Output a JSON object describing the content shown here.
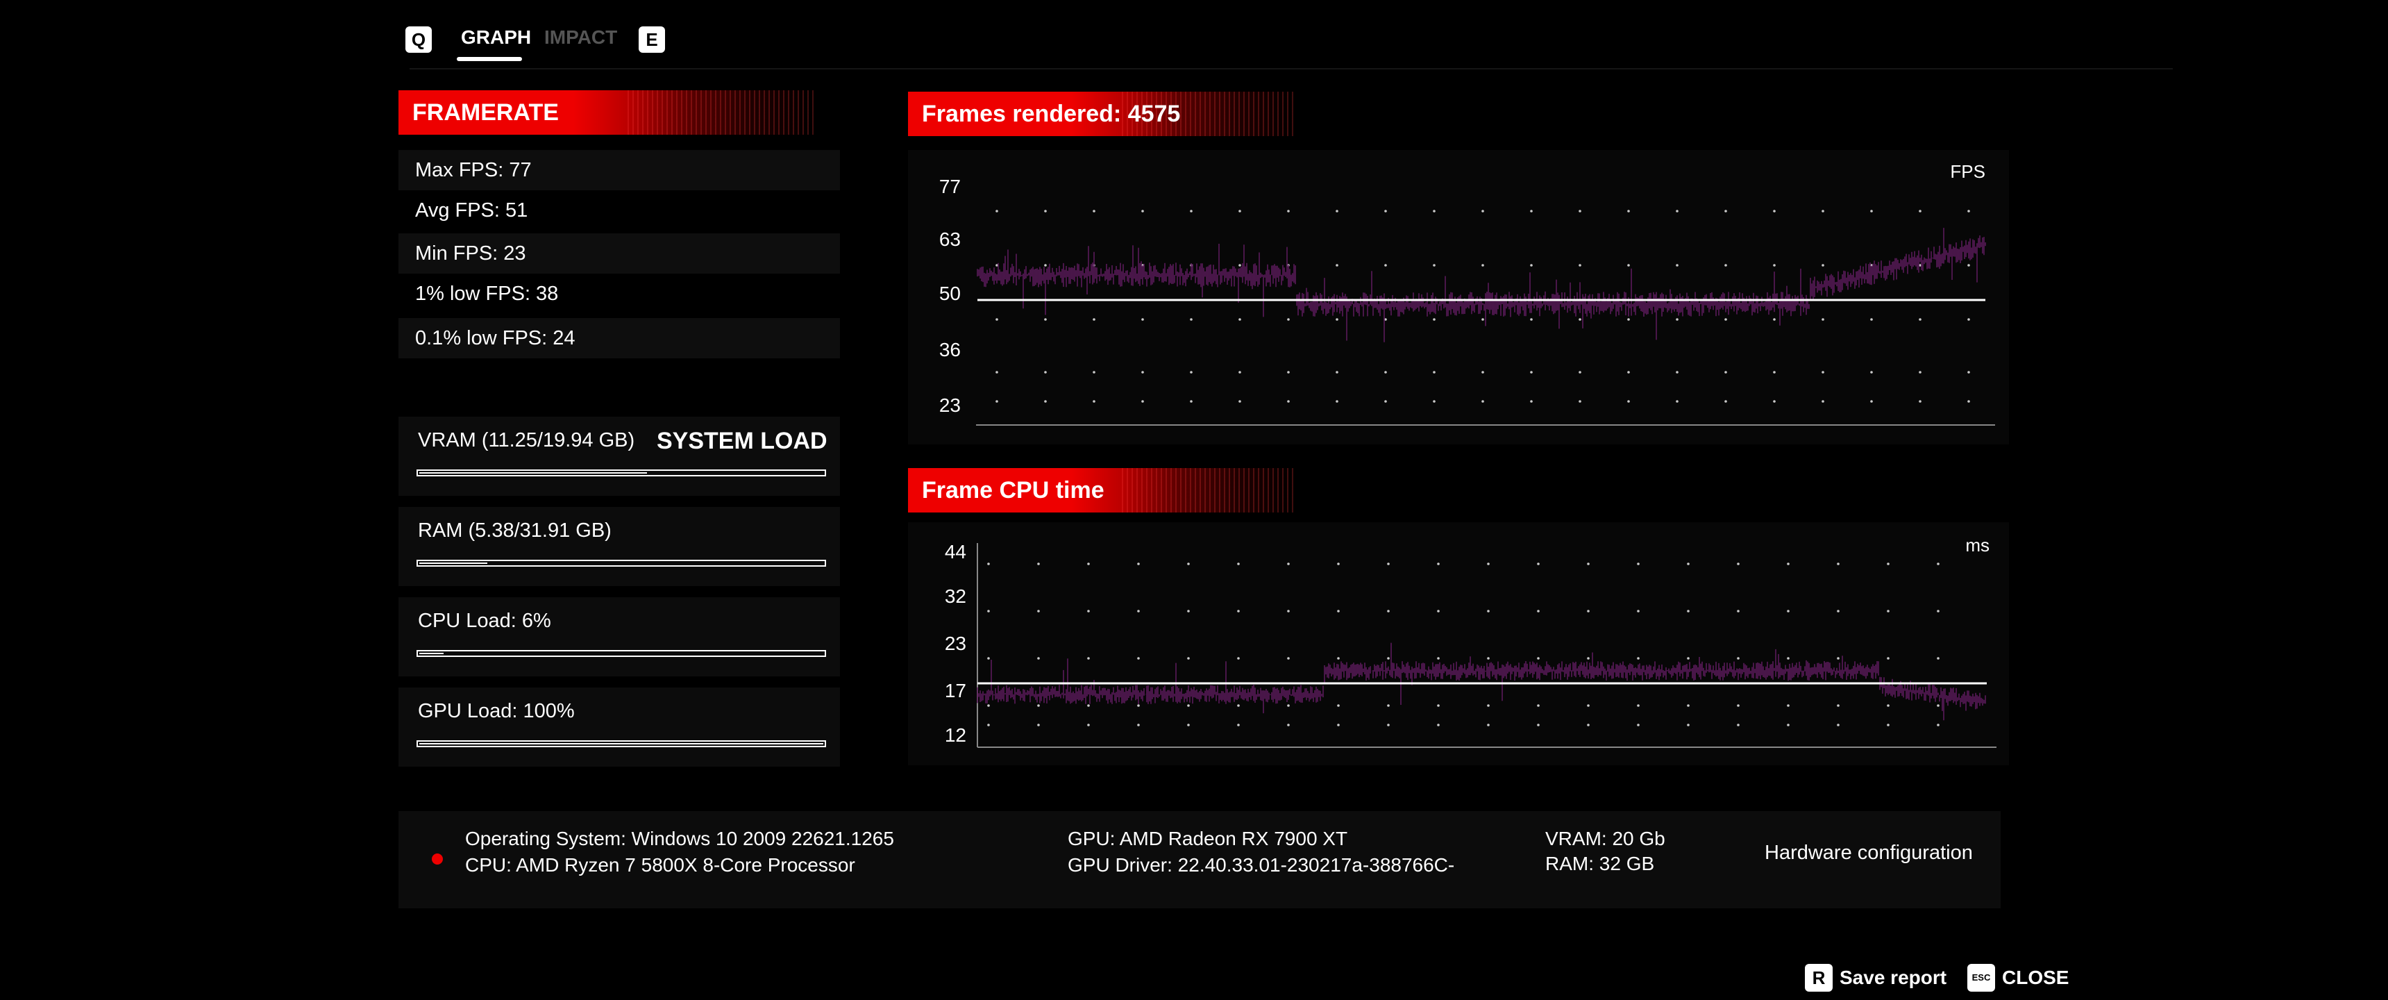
{
  "tabs": {
    "prev_key": "Q",
    "next_key": "E",
    "items": [
      {
        "label": "GRAPH",
        "active": true
      },
      {
        "label": "IMPACT",
        "active": false
      }
    ]
  },
  "framerate": {
    "title": "FRAMERATE",
    "stats": [
      "Max FPS: 77",
      "Avg FPS: 51",
      "Min FPS: 23",
      "1% low FPS: 38",
      "0.1% low FPS: 24"
    ]
  },
  "system_load": {
    "title": "SYSTEM LOAD",
    "items": [
      {
        "label": "VRAM (11.25/19.94 GB)",
        "fraction": 0.564
      },
      {
        "label": "RAM (5.38/31.91 GB)",
        "fraction": 0.169
      },
      {
        "label": "CPU Load: 6%",
        "fraction": 0.06
      },
      {
        "label": "GPU Load: 100%",
        "fraction": 1.0
      }
    ]
  },
  "frames_graph": {
    "title": "Frames rendered: 4575",
    "unit": "FPS",
    "ticks": [
      "77",
      "63",
      "50",
      "36",
      "23"
    ]
  },
  "cpu_graph": {
    "title": "Frame CPU time",
    "unit": "ms",
    "ticks": [
      "44",
      "32",
      "23",
      "17",
      "12"
    ]
  },
  "hardware": {
    "os": "Operating System: Windows 10 2009 22621.1265",
    "cpu": "CPU: AMD Ryzen 7 5800X 8-Core Processor",
    "gpu": "GPU: AMD Radeon RX 7900 XT",
    "gpu_driver": "GPU Driver: 22.40.33.01-230217a-388766C-",
    "vram": "VRAM: 20 Gb",
    "ram": "RAM: 32 GB",
    "config_button": "Hardware configuration"
  },
  "footer": {
    "save_key": "R",
    "save_label": "Save report",
    "close_key": "ESC",
    "close_label": "CLOSE"
  },
  "colors": {
    "accent": "#e00000",
    "trace": "#5a1a5a",
    "background": "#000000"
  }
}
